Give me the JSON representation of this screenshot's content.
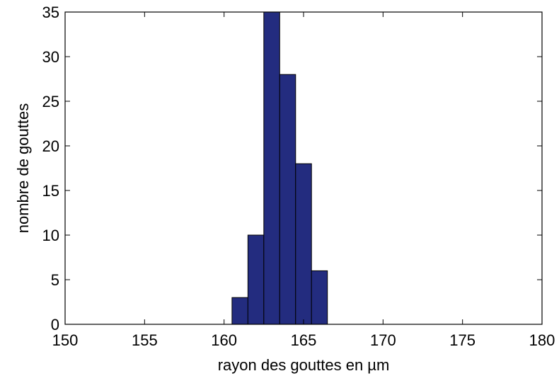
{
  "chart_data": {
    "type": "bar",
    "title": "",
    "xlabel": "rayon des gouttes en µm",
    "ylabel": "nombre de gouttes",
    "xlim": [
      150,
      180
    ],
    "ylim": [
      0,
      35
    ],
    "xticks": [
      150,
      155,
      160,
      165,
      170,
      175,
      180
    ],
    "yticks": [
      0,
      5,
      10,
      15,
      20,
      25,
      30,
      35
    ],
    "grid": false,
    "bar_color": "#232c7f",
    "bins": [
      {
        "x0": 160.5,
        "x1": 161.5,
        "value": 3
      },
      {
        "x0": 161.5,
        "x1": 162.5,
        "value": 10
      },
      {
        "x0": 162.5,
        "x1": 163.5,
        "value": 35
      },
      {
        "x0": 163.5,
        "x1": 164.5,
        "value": 28
      },
      {
        "x0": 164.5,
        "x1": 165.5,
        "value": 18
      },
      {
        "x0": 165.5,
        "x1": 166.5,
        "value": 6
      }
    ]
  }
}
